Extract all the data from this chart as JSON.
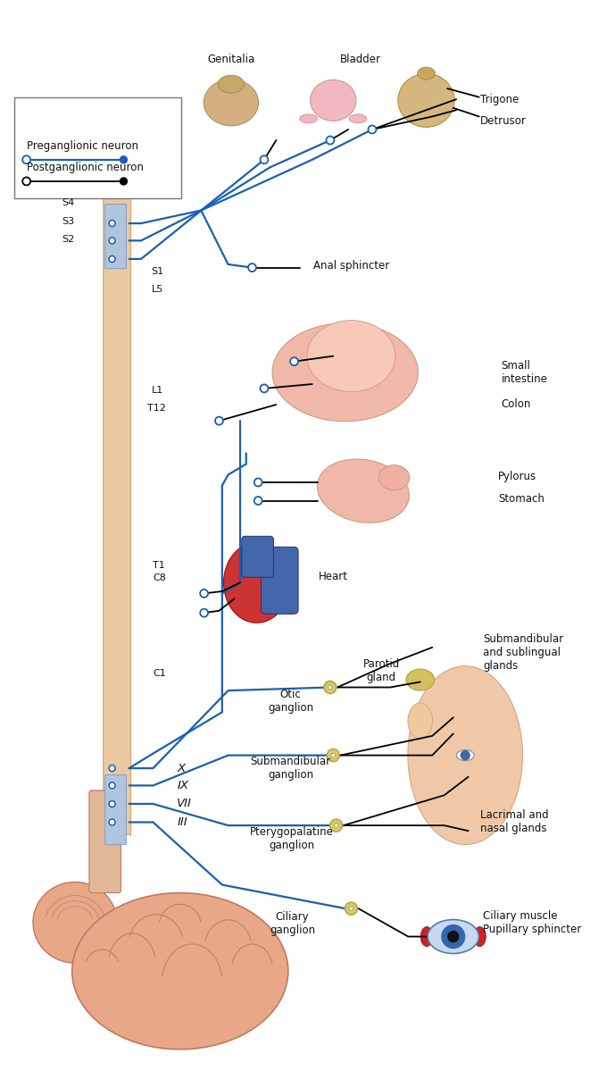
{
  "bg": "#ffffff",
  "pre_color": "#1a5fb4",
  "post_color": "#000000",
  "ganglion_fill": "#d4c97a",
  "ganglion_edge": "#b8a83a",
  "spine_fill": "#e8c9a0",
  "spine_edge": "#c8a870",
  "brain_fill": "#e8a888",
  "brain_edge": "#c07860",
  "highlight_blue": "#b0c4de",
  "face_fill": "#f0c8a8",
  "organ_fill": "#f0b8a8",
  "organ_edge": "#d09888",
  "heart_red": "#cc3333",
  "heart_blue": "#4466aa",
  "eye_fill": "#c8d8f0",
  "spinal_labels": [
    {
      "label": "C1",
      "xf": 0.255,
      "yf": 0.624
    },
    {
      "label": "C8",
      "xf": 0.255,
      "yf": 0.536
    },
    {
      "label": "T1",
      "xf": 0.255,
      "yf": 0.524
    },
    {
      "label": "T12",
      "xf": 0.245,
      "yf": 0.378
    },
    {
      "label": "L1",
      "xf": 0.252,
      "yf": 0.362
    },
    {
      "label": "L5",
      "xf": 0.252,
      "yf": 0.268
    },
    {
      "label": "S1",
      "xf": 0.252,
      "yf": 0.252
    },
    {
      "label": "S2",
      "xf": 0.103,
      "yf": 0.222
    },
    {
      "label": "S3",
      "xf": 0.103,
      "yf": 0.205
    },
    {
      "label": "S4",
      "xf": 0.103,
      "yf": 0.188
    }
  ]
}
